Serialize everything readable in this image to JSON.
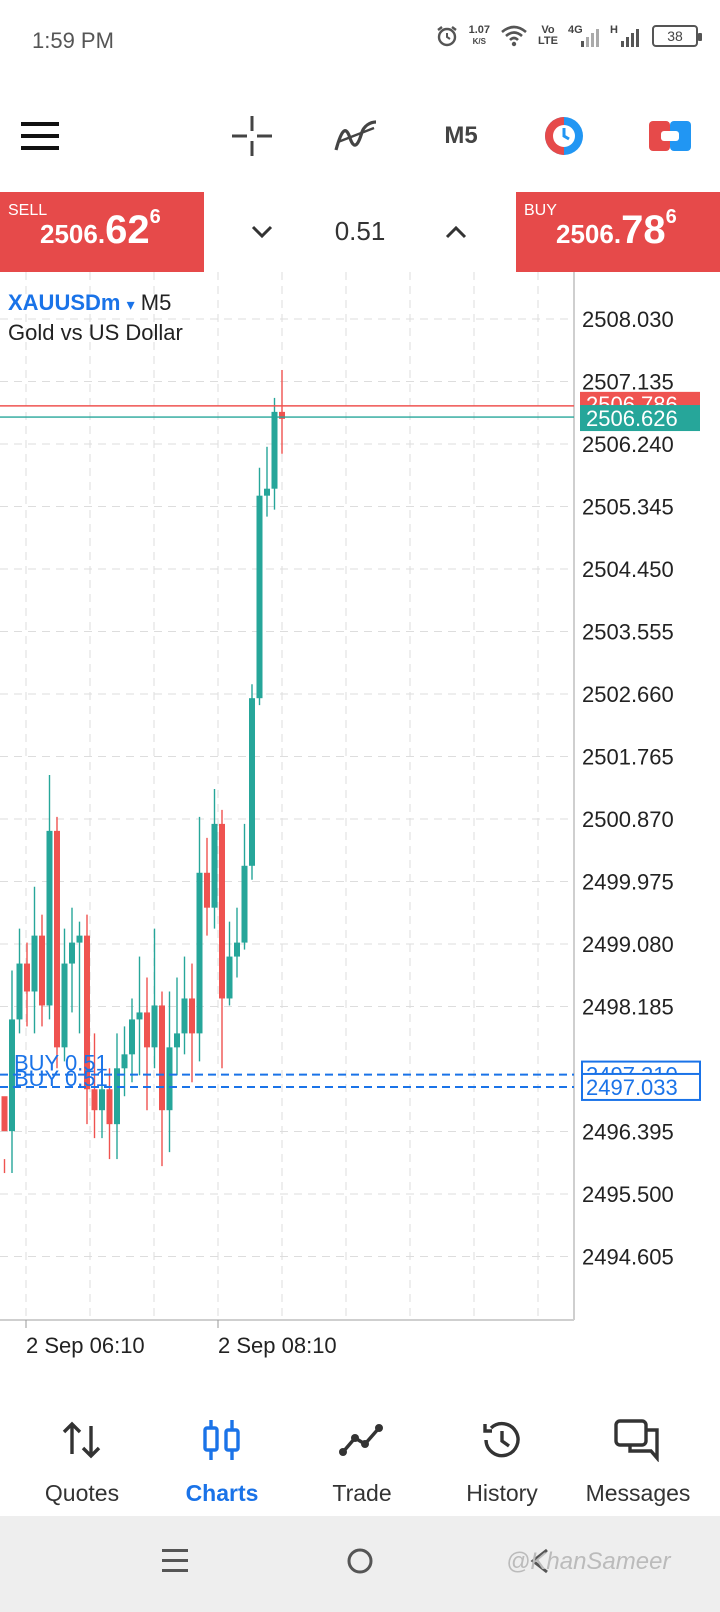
{
  "status_bar": {
    "time": "1:59 PM",
    "speed_value": "1.07",
    "speed_unit": "K/S",
    "volte_top": "Vo",
    "volte_bottom": "LTE",
    "network_4g": "4G",
    "network_h": "H",
    "battery": "38"
  },
  "toolbar": {
    "menu_icon": "hamburger-menu-icon",
    "crosshair_icon": "crosshair-icon",
    "indicators_icon": "indicators-icon",
    "timeframe": "M5",
    "clock_icon": "one-click-trading-icon",
    "toggle_icon": "trade-panel-toggle-icon"
  },
  "trade_panel": {
    "sell_label": "SELL",
    "sell_price_small": "2506.",
    "sell_price_big": "62",
    "sell_price_sup": "6",
    "volume": "0.51",
    "buy_label": "BUY",
    "buy_price_small": "2506.",
    "buy_price_big": "78",
    "buy_price_sup": "6"
  },
  "chart_header": {
    "symbol": "XAUUSDm",
    "dropdown_icon": "▾",
    "timeframe": "M5",
    "description": "Gold vs US Dollar"
  },
  "chart_data": {
    "type": "candlestick",
    "symbol": "XAUUSDm",
    "timeframe": "M5",
    "y_ticks": [
      "2508.030",
      "2507.135",
      "2506.240",
      "2505.345",
      "2504.450",
      "2503.555",
      "2502.660",
      "2501.765",
      "2500.870",
      "2499.975",
      "2499.080",
      "2498.185",
      "2496.395",
      "2495.500",
      "2494.605"
    ],
    "ylim": [
      2494.0,
      2508.7
    ],
    "x_labels": [
      "2 Sep 06:10",
      "2 Sep 08:10"
    ],
    "ask_price": "2506.786",
    "bid_price": "2506.626",
    "position_lines": [
      {
        "label": "BUY 0.51",
        "price": "2497.210"
      },
      {
        "label": "BUY 0.51",
        "price": "2497.033"
      }
    ],
    "candles": [
      [
        2496.9,
        2496.4,
        2496.0,
        2495.8
      ],
      [
        2496.4,
        2498.0,
        2498.7,
        2495.8
      ],
      [
        2498.0,
        2498.8,
        2499.3,
        2497.8
      ],
      [
        2498.8,
        2498.4,
        2499.1,
        2497.9
      ],
      [
        2498.4,
        2499.2,
        2499.9,
        2497.8
      ],
      [
        2499.2,
        2498.2,
        2499.5,
        2497.9
      ],
      [
        2498.2,
        2500.7,
        2501.5,
        2498.0
      ],
      [
        2500.7,
        2497.6,
        2500.9,
        2497.3
      ],
      [
        2497.6,
        2498.8,
        2499.3,
        2497.4
      ],
      [
        2498.8,
        2499.1,
        2499.6,
        2498.1
      ],
      [
        2499.1,
        2499.2,
        2499.4,
        2497.8
      ],
      [
        2499.2,
        2497.0,
        2499.5,
        2496.5
      ],
      [
        2497.0,
        2496.7,
        2497.8,
        2496.3
      ],
      [
        2496.7,
        2497.0,
        2497.4,
        2496.3
      ],
      [
        2497.0,
        2496.5,
        2497.3,
        2496.0
      ],
      [
        2496.5,
        2497.3,
        2497.8,
        2496.0
      ],
      [
        2497.3,
        2497.5,
        2497.9,
        2496.9
      ],
      [
        2497.5,
        2498.0,
        2498.3,
        2497.1
      ],
      [
        2498.0,
        2498.1,
        2498.9,
        2497.2
      ],
      [
        2498.1,
        2497.6,
        2498.6,
        2496.7
      ],
      [
        2497.6,
        2498.2,
        2499.3,
        2497.3
      ],
      [
        2498.2,
        2496.7,
        2498.4,
        2495.9
      ],
      [
        2496.7,
        2497.6,
        2498.4,
        2496.1
      ],
      [
        2497.6,
        2497.8,
        2498.6,
        2497.2
      ],
      [
        2497.8,
        2498.3,
        2498.9,
        2497.5
      ],
      [
        2498.3,
        2497.8,
        2498.8,
        2497.1
      ],
      [
        2497.8,
        2500.1,
        2500.9,
        2497.4
      ],
      [
        2500.1,
        2499.6,
        2500.6,
        2499.2
      ],
      [
        2499.6,
        2500.8,
        2501.3,
        2499.3
      ],
      [
        2500.8,
        2498.3,
        2501.0,
        2497.3
      ],
      [
        2498.3,
        2498.9,
        2499.4,
        2498.2
      ],
      [
        2498.9,
        2499.1,
        2499.6,
        2498.6
      ],
      [
        2499.1,
        2500.2,
        2500.8,
        2499.0
      ],
      [
        2500.2,
        2502.6,
        2502.8,
        2500.0
      ],
      [
        2502.6,
        2505.5,
        2505.9,
        2502.5
      ],
      [
        2505.5,
        2505.6,
        2506.2,
        2505.2
      ],
      [
        2505.6,
        2506.7,
        2506.9,
        2505.3
      ],
      [
        2506.7,
        2506.6,
        2507.3,
        2506.1
      ]
    ]
  },
  "bottom_nav": {
    "items": [
      {
        "label": "Quotes",
        "icon": "quotes-arrows-icon"
      },
      {
        "label": "Charts",
        "icon": "charts-candles-icon"
      },
      {
        "label": "Trade",
        "icon": "trade-line-icon"
      },
      {
        "label": "History",
        "icon": "history-clock-icon"
      },
      {
        "label": "Messages",
        "icon": "messages-chat-icon"
      }
    ],
    "active_color": "#1a73e8"
  },
  "system_nav": {
    "watermark": "@KhanSameer"
  },
  "colors": {
    "bull": "#26a69a",
    "bear": "#ef5350",
    "sell_buy_box": "#e64a4a",
    "accent": "#1a73e8"
  }
}
